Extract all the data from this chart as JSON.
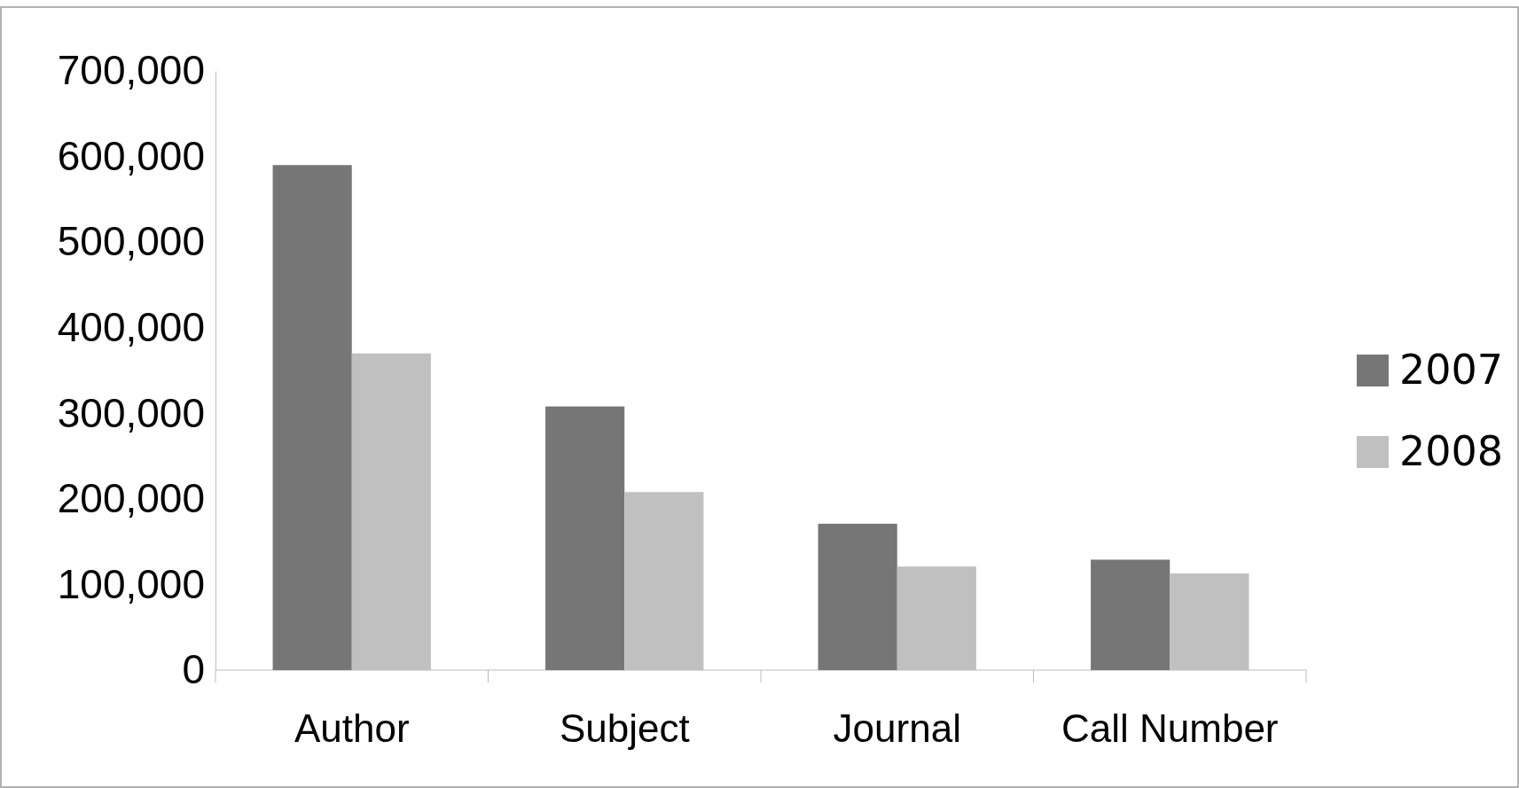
{
  "chart_data": {
    "type": "bar",
    "categories": [
      "Author",
      "Subject",
      "Journal",
      "Call Number"
    ],
    "series": [
      {
        "name": "2007",
        "color": "#767676",
        "values": [
          590000,
          308000,
          171000,
          129000
        ]
      },
      {
        "name": "2008",
        "color": "#c0c0c0",
        "values": [
          370000,
          208000,
          121000,
          113000
        ]
      }
    ],
    "ylim": [
      0,
      700000
    ],
    "yticks": [
      {
        "value": 0,
        "label": "0"
      },
      {
        "value": 100000,
        "label": "100,000"
      },
      {
        "value": 200000,
        "label": "200,000"
      },
      {
        "value": 300000,
        "label": "300,000"
      },
      {
        "value": 400000,
        "label": "400,000"
      },
      {
        "value": 500000,
        "label": "500,000"
      },
      {
        "value": 600000,
        "label": "600,000"
      },
      {
        "value": 700000,
        "label": "700,000"
      }
    ],
    "grid": false,
    "legend": "right"
  }
}
